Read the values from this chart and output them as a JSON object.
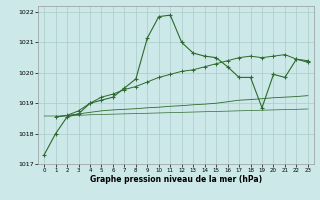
{
  "xlabel": "Graphe pression niveau de la mer (hPa)",
  "bg_color": "#cce8e8",
  "grid_color": "#aacccc",
  "line_color": "#2d6a2d",
  "xlim": [
    -0.5,
    23.5
  ],
  "ylim": [
    1017,
    1022.2
  ],
  "yticks": [
    1017,
    1018,
    1019,
    1020,
    1021,
    1022
  ],
  "xticks": [
    0,
    1,
    2,
    3,
    4,
    5,
    6,
    7,
    8,
    9,
    10,
    11,
    12,
    13,
    14,
    15,
    16,
    17,
    18,
    19,
    20,
    21,
    22,
    23
  ],
  "series1_x": [
    0,
    1,
    2,
    3,
    4,
    5,
    6,
    7,
    8,
    9,
    10,
    11,
    12,
    13,
    14,
    15,
    16,
    17,
    18,
    19,
    20,
    21,
    22,
    23
  ],
  "series1_y": [
    1017.3,
    1018.0,
    1018.55,
    1018.65,
    1019.0,
    1019.1,
    1019.2,
    1019.5,
    1019.8,
    1021.15,
    1021.85,
    1021.9,
    1021.0,
    1020.65,
    1020.55,
    1020.5,
    1020.2,
    1019.85,
    1019.85,
    1018.85,
    1019.95,
    1019.85,
    1020.45,
    1020.35
  ],
  "series2_x": [
    1,
    2,
    3,
    4,
    5,
    6,
    7,
    8,
    9,
    10,
    11,
    12,
    13,
    14,
    15,
    16,
    17,
    18,
    19,
    20,
    21,
    22,
    23
  ],
  "series2_y": [
    1018.55,
    1018.6,
    1018.75,
    1019.0,
    1019.2,
    1019.3,
    1019.45,
    1019.55,
    1019.7,
    1019.85,
    1019.95,
    1020.05,
    1020.1,
    1020.2,
    1020.3,
    1020.4,
    1020.5,
    1020.55,
    1020.5,
    1020.55,
    1020.6,
    1020.45,
    1020.4
  ],
  "series3_x": [
    1,
    2,
    3,
    4,
    5,
    6,
    7,
    8,
    9,
    10,
    11,
    12,
    13,
    14,
    15,
    16,
    17,
    18,
    19,
    20,
    21,
    22,
    23
  ],
  "series3_y": [
    1018.55,
    1018.6,
    1018.65,
    1018.7,
    1018.75,
    1018.78,
    1018.8,
    1018.82,
    1018.85,
    1018.87,
    1018.9,
    1018.92,
    1018.95,
    1018.97,
    1019.0,
    1019.05,
    1019.1,
    1019.12,
    1019.15,
    1019.18,
    1019.2,
    1019.22,
    1019.25
  ],
  "series4_x": [
    0,
    1,
    2,
    3,
    4,
    5,
    6,
    7,
    8,
    9,
    10,
    11,
    12,
    13,
    14,
    15,
    16,
    17,
    18,
    19,
    20,
    21,
    22,
    23
  ],
  "series4_y": [
    1018.58,
    1018.58,
    1018.58,
    1018.6,
    1018.62,
    1018.63,
    1018.64,
    1018.65,
    1018.66,
    1018.67,
    1018.68,
    1018.69,
    1018.7,
    1018.71,
    1018.72,
    1018.73,
    1018.74,
    1018.75,
    1018.76,
    1018.77,
    1018.78,
    1018.79,
    1018.8,
    1018.81
  ]
}
